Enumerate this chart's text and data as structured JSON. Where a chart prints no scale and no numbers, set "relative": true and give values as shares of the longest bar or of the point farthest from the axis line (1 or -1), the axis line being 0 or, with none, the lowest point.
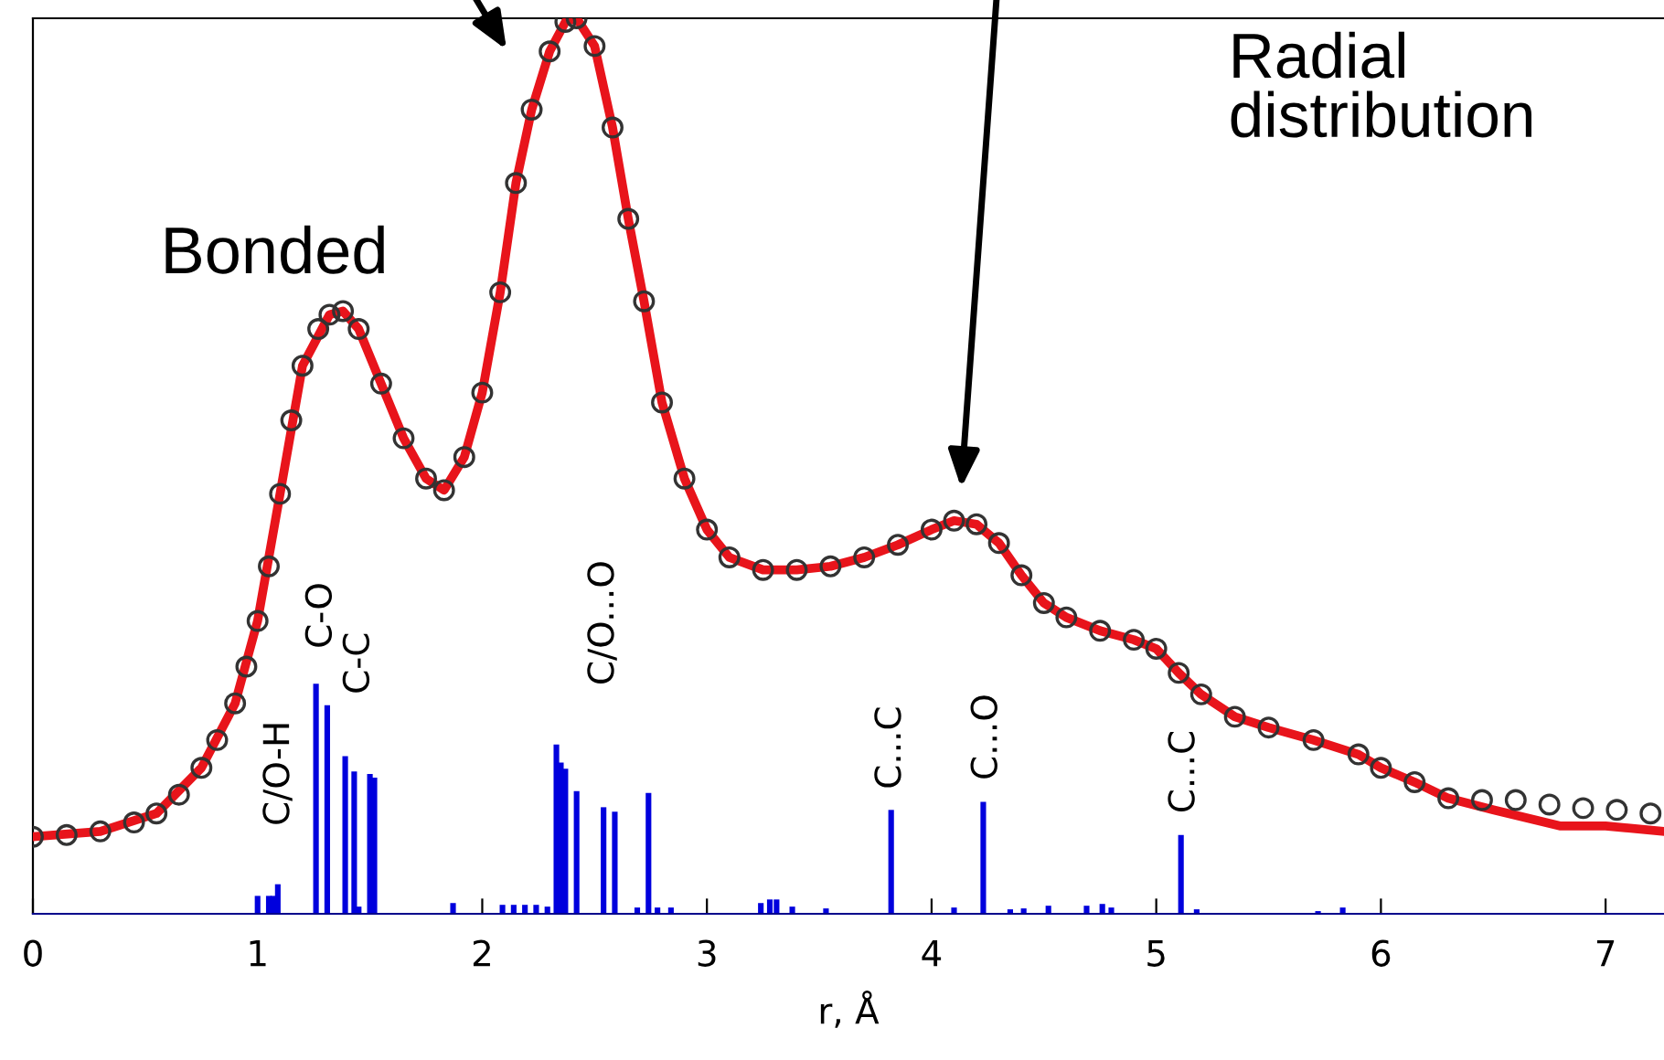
{
  "chart_data": {
    "type": "line",
    "relative": true,
    "xlabel": "r, Å",
    "xlim": [
      0,
      7.26
    ],
    "xticks": [
      0,
      1,
      2,
      3,
      4,
      5,
      6,
      7
    ],
    "grid": false,
    "tick_labels": "x",
    "series": [
      {
        "type": "scatter",
        "marker": "circle",
        "color": "#333333",
        "x": [
          0,
          0.15,
          0.3,
          0.45,
          0.55,
          0.65,
          0.75,
          0.82,
          0.9,
          0.95,
          1.0,
          1.05,
          1.1,
          1.15,
          1.2,
          1.27,
          1.32,
          1.38,
          1.45,
          1.55,
          1.65,
          1.75,
          1.83,
          1.92,
          2.0,
          2.08,
          2.15,
          2.22,
          2.3,
          2.37,
          2.42,
          2.5,
          2.58,
          2.65,
          2.72,
          2.8,
          2.9,
          3.0,
          3.1,
          3.25,
          3.4,
          3.55,
          3.7,
          3.85,
          4.0,
          4.1,
          4.2,
          4.3,
          4.4,
          4.5,
          4.6,
          4.75,
          4.9,
          5.0,
          5.1,
          5.2,
          5.35,
          5.5,
          5.7,
          5.9,
          6.0,
          6.15,
          6.3,
          6.45,
          6.6,
          6.75,
          6.9,
          7.05,
          7.2
        ],
        "values": [
          0.086,
          0.088,
          0.092,
          0.102,
          0.112,
          0.133,
          0.163,
          0.194,
          0.235,
          0.276,
          0.327,
          0.388,
          0.469,
          0.551,
          0.612,
          0.653,
          0.669,
          0.673,
          0.653,
          0.592,
          0.531,
          0.486,
          0.473,
          0.51,
          0.582,
          0.694,
          0.816,
          0.898,
          0.963,
          0.996,
          1.0,
          0.969,
          0.878,
          0.776,
          0.684,
          0.571,
          0.486,
          0.429,
          0.398,
          0.384,
          0.384,
          0.388,
          0.398,
          0.412,
          0.429,
          0.439,
          0.435,
          0.414,
          0.378,
          0.347,
          0.331,
          0.316,
          0.306,
          0.296,
          0.269,
          0.245,
          0.22,
          0.208,
          0.194,
          0.178,
          0.163,
          0.147,
          0.129,
          0.127,
          0.127,
          0.122,
          0.118,
          0.116,
          0.112
        ]
      },
      {
        "color": "#e8141b",
        "line_style": "solid",
        "x": [
          0,
          0.3,
          0.55,
          0.75,
          0.9,
          1.0,
          1.1,
          1.2,
          1.32,
          1.38,
          1.45,
          1.55,
          1.65,
          1.75,
          1.83,
          1.92,
          2.0,
          2.08,
          2.15,
          2.22,
          2.3,
          2.37,
          2.42,
          2.5,
          2.58,
          2.65,
          2.72,
          2.8,
          2.9,
          3.0,
          3.1,
          3.25,
          3.4,
          3.55,
          3.7,
          3.85,
          4.0,
          4.1,
          4.2,
          4.3,
          4.4,
          4.5,
          4.6,
          4.75,
          4.9,
          5.0,
          5.1,
          5.2,
          5.35,
          5.5,
          5.7,
          5.9,
          6.0,
          6.15,
          6.3,
          6.5,
          6.8,
          7.0,
          7.26
        ],
        "values": [
          0.086,
          0.092,
          0.112,
          0.163,
          0.235,
          0.327,
          0.469,
          0.612,
          0.669,
          0.673,
          0.653,
          0.592,
          0.531,
          0.486,
          0.473,
          0.51,
          0.582,
          0.694,
          0.816,
          0.898,
          0.963,
          0.996,
          1.0,
          0.969,
          0.878,
          0.776,
          0.684,
          0.571,
          0.486,
          0.429,
          0.398,
          0.384,
          0.384,
          0.388,
          0.398,
          0.412,
          0.429,
          0.439,
          0.435,
          0.414,
          0.378,
          0.347,
          0.331,
          0.316,
          0.306,
          0.296,
          0.269,
          0.245,
          0.22,
          0.208,
          0.194,
          0.178,
          0.163,
          0.147,
          0.129,
          0.116,
          0.098,
          0.098,
          0.092
        ]
      },
      {
        "type": "bar",
        "color": "#0000dd",
        "x": [
          1.0,
          1.05,
          1.07,
          1.09,
          1.26,
          1.31,
          1.39,
          1.43,
          1.45,
          1.5,
          1.52,
          1.87,
          2.09,
          2.14,
          2.19,
          2.24,
          2.29,
          2.33,
          2.35,
          2.37,
          2.42,
          2.54,
          2.59,
          2.69,
          2.74,
          2.78,
          2.84,
          3.24,
          3.28,
          3.31,
          3.38,
          3.53,
          3.82,
          4.1,
          4.23,
          4.35,
          4.41,
          4.52,
          4.69,
          4.76,
          4.8,
          5.11,
          5.18,
          5.72,
          5.83
        ],
        "values": [
          0.02,
          0.02,
          0.02,
          0.033,
          0.257,
          0.233,
          0.176,
          0.159,
          0.008,
          0.156,
          0.152,
          0.012,
          0.01,
          0.01,
          0.01,
          0.01,
          0.008,
          0.189,
          0.169,
          0.162,
          0.137,
          0.119,
          0.114,
          0.007,
          0.135,
          0.007,
          0.007,
          0.012,
          0.016,
          0.016,
          0.008,
          0.006,
          0.116,
          0.007,
          0.125,
          0.005,
          0.006,
          0.009,
          0.009,
          0.011,
          0.007,
          0.088,
          0.005,
          0.003,
          0.007
        ]
      }
    ],
    "annotations": [
      "Bonded",
      "Radial distribution",
      "C/O-H",
      "C-O",
      "C-C",
      "C/O...O",
      "C...C",
      "C...O",
      "C...C"
    ]
  }
}
